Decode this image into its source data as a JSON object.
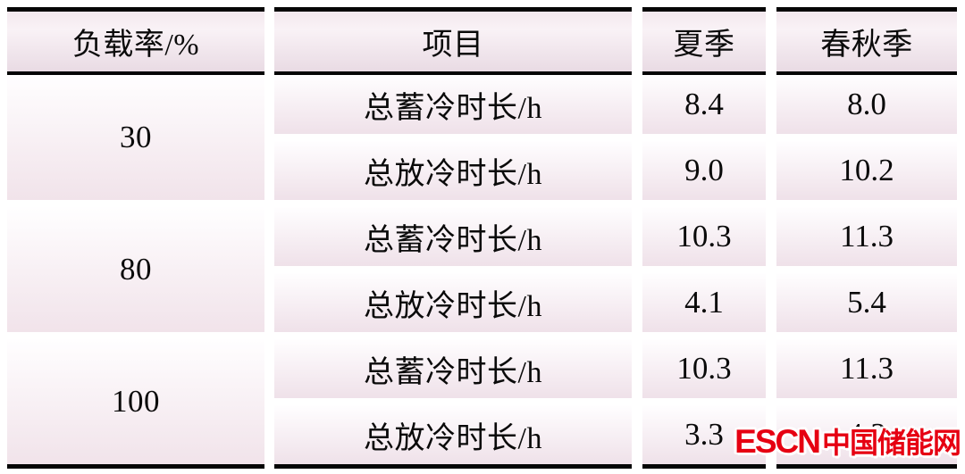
{
  "chart_data": {
    "type": "table",
    "title": "",
    "columns": [
      "负载率/%",
      "项目",
      "夏季",
      "春秋季"
    ],
    "rows": [
      [
        "30",
        "总蓄冷时长/h",
        "8.4",
        "8.0"
      ],
      [
        "30",
        "总放冷时长/h",
        "9.0",
        "10.2"
      ],
      [
        "80",
        "总蓄冷时长/h",
        "10.3",
        "11.3"
      ],
      [
        "80",
        "总放冷时长/h",
        "4.1",
        "5.4"
      ],
      [
        "100",
        "总蓄冷时长/h",
        "10.3",
        "11.3"
      ],
      [
        "100",
        "总放冷时长/h",
        "3.3",
        "4.2"
      ]
    ],
    "layout_hints": "three-line table; first column groups two sub-rows per load rate; watermark overlaps last value"
  },
  "table": {
    "columns": [
      {
        "header": "负载率/%"
      },
      {
        "header": "项目"
      },
      {
        "header": "夏季"
      },
      {
        "header": "春秋季"
      }
    ],
    "groups": [
      {
        "load": "30",
        "rows": [
          {
            "item": "总蓄冷时长/h",
            "summer": "8.4",
            "spring_autumn": "8.0"
          },
          {
            "item": "总放冷时长/h",
            "summer": "9.0",
            "spring_autumn": "10.2"
          }
        ]
      },
      {
        "load": "80",
        "rows": [
          {
            "item": "总蓄冷时长/h",
            "summer": "10.3",
            "spring_autumn": "11.3"
          },
          {
            "item": "总放冷时长/h",
            "summer": "4.1",
            "spring_autumn": "5.4"
          }
        ]
      },
      {
        "load": "100",
        "rows": [
          {
            "item": "总蓄冷时长/h",
            "summer": "10.3",
            "spring_autumn": "11.3"
          },
          {
            "item": "总放冷时长/h",
            "summer": "3.3",
            "spring_autumn": "4.2"
          }
        ]
      }
    ]
  },
  "watermark": {
    "latin": "ESCN",
    "cjk": "中国储能网",
    "color": "#e60012"
  },
  "colors": {
    "cell_pink_bottom": "#f0e2ea",
    "cell_white_top": "#fffeff",
    "rule_black": "#050505",
    "background": "#ffffff"
  }
}
